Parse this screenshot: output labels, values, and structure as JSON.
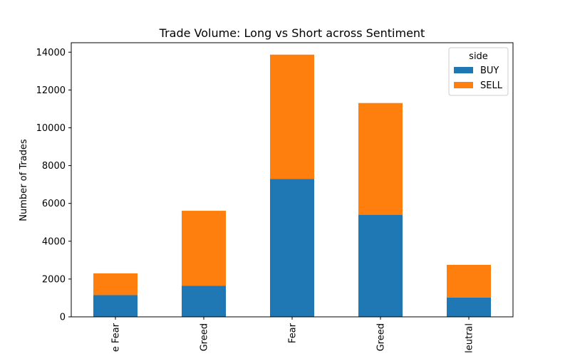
{
  "chart_data": {
    "type": "bar",
    "stacked": true,
    "title": "Trade Volume: Long vs Short across Sentiment",
    "xlabel": "",
    "ylabel": "Number of Trades",
    "categories": [
      "e Fear",
      "Greed",
      "Fear",
      "Greed",
      "leutral"
    ],
    "series": [
      {
        "name": "BUY",
        "color": "#1f77b4",
        "values": [
          1150,
          1650,
          7300,
          5400,
          1020
        ]
      },
      {
        "name": "SELL",
        "color": "#ff7f0e",
        "values": [
          1150,
          3960,
          6570,
          5910,
          1730
        ]
      }
    ],
    "ylim": [
      0,
      14500
    ],
    "yticks": [
      0,
      2000,
      4000,
      6000,
      8000,
      10000,
      12000,
      14000
    ],
    "grid": false,
    "legend": {
      "title": "side",
      "placement": "top-right"
    }
  }
}
